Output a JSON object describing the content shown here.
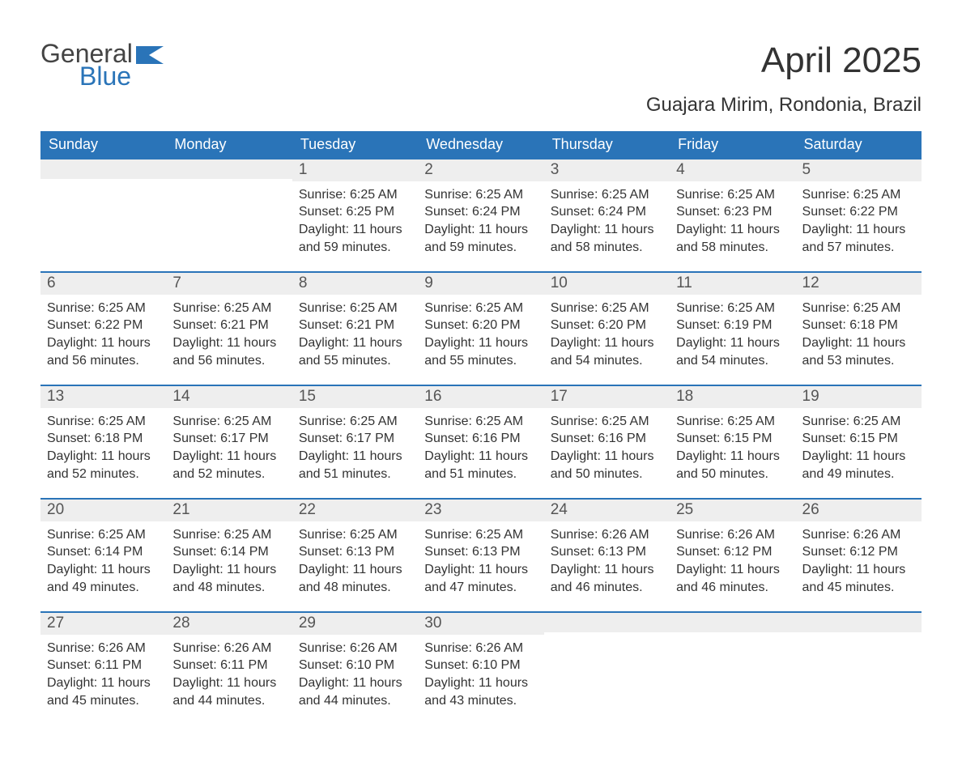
{
  "brand": {
    "text1": "General",
    "text2": "Blue",
    "accent": "#2a74b8"
  },
  "title": "April 2025",
  "location": "Guajara Mirim, Rondonia, Brazil",
  "header_bg": "#2a74b8",
  "header_fg": "#ffffff",
  "day_bar_bg": "#eeeeee",
  "day_bar_border": "#2a74b8",
  "days_of_week": [
    "Sunday",
    "Monday",
    "Tuesday",
    "Wednesday",
    "Thursday",
    "Friday",
    "Saturday"
  ],
  "weeks": [
    [
      null,
      null,
      {
        "n": "1",
        "sunrise": "6:25 AM",
        "sunset": "6:25 PM",
        "daylight": "11 hours and 59 minutes."
      },
      {
        "n": "2",
        "sunrise": "6:25 AM",
        "sunset": "6:24 PM",
        "daylight": "11 hours and 59 minutes."
      },
      {
        "n": "3",
        "sunrise": "6:25 AM",
        "sunset": "6:24 PM",
        "daylight": "11 hours and 58 minutes."
      },
      {
        "n": "4",
        "sunrise": "6:25 AM",
        "sunset": "6:23 PM",
        "daylight": "11 hours and 58 minutes."
      },
      {
        "n": "5",
        "sunrise": "6:25 AM",
        "sunset": "6:22 PM",
        "daylight": "11 hours and 57 minutes."
      }
    ],
    [
      {
        "n": "6",
        "sunrise": "6:25 AM",
        "sunset": "6:22 PM",
        "daylight": "11 hours and 56 minutes."
      },
      {
        "n": "7",
        "sunrise": "6:25 AM",
        "sunset": "6:21 PM",
        "daylight": "11 hours and 56 minutes."
      },
      {
        "n": "8",
        "sunrise": "6:25 AM",
        "sunset": "6:21 PM",
        "daylight": "11 hours and 55 minutes."
      },
      {
        "n": "9",
        "sunrise": "6:25 AM",
        "sunset": "6:20 PM",
        "daylight": "11 hours and 55 minutes."
      },
      {
        "n": "10",
        "sunrise": "6:25 AM",
        "sunset": "6:20 PM",
        "daylight": "11 hours and 54 minutes."
      },
      {
        "n": "11",
        "sunrise": "6:25 AM",
        "sunset": "6:19 PM",
        "daylight": "11 hours and 54 minutes."
      },
      {
        "n": "12",
        "sunrise": "6:25 AM",
        "sunset": "6:18 PM",
        "daylight": "11 hours and 53 minutes."
      }
    ],
    [
      {
        "n": "13",
        "sunrise": "6:25 AM",
        "sunset": "6:18 PM",
        "daylight": "11 hours and 52 minutes."
      },
      {
        "n": "14",
        "sunrise": "6:25 AM",
        "sunset": "6:17 PM",
        "daylight": "11 hours and 52 minutes."
      },
      {
        "n": "15",
        "sunrise": "6:25 AM",
        "sunset": "6:17 PM",
        "daylight": "11 hours and 51 minutes."
      },
      {
        "n": "16",
        "sunrise": "6:25 AM",
        "sunset": "6:16 PM",
        "daylight": "11 hours and 51 minutes."
      },
      {
        "n": "17",
        "sunrise": "6:25 AM",
        "sunset": "6:16 PM",
        "daylight": "11 hours and 50 minutes."
      },
      {
        "n": "18",
        "sunrise": "6:25 AM",
        "sunset": "6:15 PM",
        "daylight": "11 hours and 50 minutes."
      },
      {
        "n": "19",
        "sunrise": "6:25 AM",
        "sunset": "6:15 PM",
        "daylight": "11 hours and 49 minutes."
      }
    ],
    [
      {
        "n": "20",
        "sunrise": "6:25 AM",
        "sunset": "6:14 PM",
        "daylight": "11 hours and 49 minutes."
      },
      {
        "n": "21",
        "sunrise": "6:25 AM",
        "sunset": "6:14 PM",
        "daylight": "11 hours and 48 minutes."
      },
      {
        "n": "22",
        "sunrise": "6:25 AM",
        "sunset": "6:13 PM",
        "daylight": "11 hours and 48 minutes."
      },
      {
        "n": "23",
        "sunrise": "6:25 AM",
        "sunset": "6:13 PM",
        "daylight": "11 hours and 47 minutes."
      },
      {
        "n": "24",
        "sunrise": "6:26 AM",
        "sunset": "6:13 PM",
        "daylight": "11 hours and 46 minutes."
      },
      {
        "n": "25",
        "sunrise": "6:26 AM",
        "sunset": "6:12 PM",
        "daylight": "11 hours and 46 minutes."
      },
      {
        "n": "26",
        "sunrise": "6:26 AM",
        "sunset": "6:12 PM",
        "daylight": "11 hours and 45 minutes."
      }
    ],
    [
      {
        "n": "27",
        "sunrise": "6:26 AM",
        "sunset": "6:11 PM",
        "daylight": "11 hours and 45 minutes."
      },
      {
        "n": "28",
        "sunrise": "6:26 AM",
        "sunset": "6:11 PM",
        "daylight": "11 hours and 44 minutes."
      },
      {
        "n": "29",
        "sunrise": "6:26 AM",
        "sunset": "6:10 PM",
        "daylight": "11 hours and 44 minutes."
      },
      {
        "n": "30",
        "sunrise": "6:26 AM",
        "sunset": "6:10 PM",
        "daylight": "11 hours and 43 minutes."
      },
      null,
      null,
      null
    ]
  ],
  "labels": {
    "sunrise": "Sunrise: ",
    "sunset": "Sunset: ",
    "daylight": "Daylight: "
  }
}
